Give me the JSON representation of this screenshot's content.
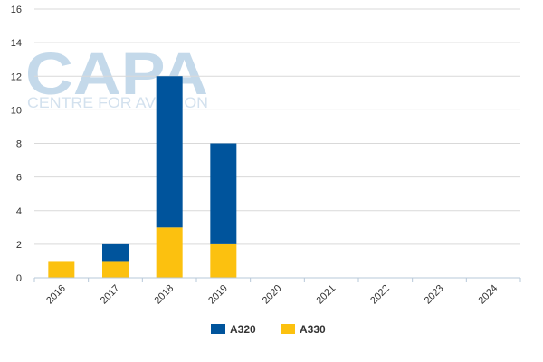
{
  "watermark": {
    "logo": "CAPA",
    "tagline": "CENTRE FOR AVIATION"
  },
  "chart_data": {
    "type": "bar",
    "stacked": true,
    "categories": [
      "2016",
      "2017",
      "2018",
      "2019",
      "2020",
      "2021",
      "2022",
      "2023",
      "2024"
    ],
    "series": [
      {
        "name": "A330",
        "color": "#fcc10f",
        "values": [
          1,
          1,
          3,
          2,
          0,
          0,
          0,
          0,
          0
        ]
      },
      {
        "name": "A320",
        "color": "#00549c",
        "values": [
          0,
          1,
          9,
          6,
          0,
          0,
          0,
          0,
          0
        ]
      }
    ],
    "legend_order": [
      "A320",
      "A330"
    ],
    "title": "",
    "xlabel": "",
    "ylabel": "",
    "ylim": [
      0,
      16
    ],
    "yticks": [
      0,
      2,
      4,
      6,
      8,
      10,
      12,
      14,
      16
    ],
    "grid": true,
    "legend_position": "bottom-center",
    "colors": {
      "grid": "#d9d9d9",
      "axis": "#b7c8d9"
    }
  }
}
